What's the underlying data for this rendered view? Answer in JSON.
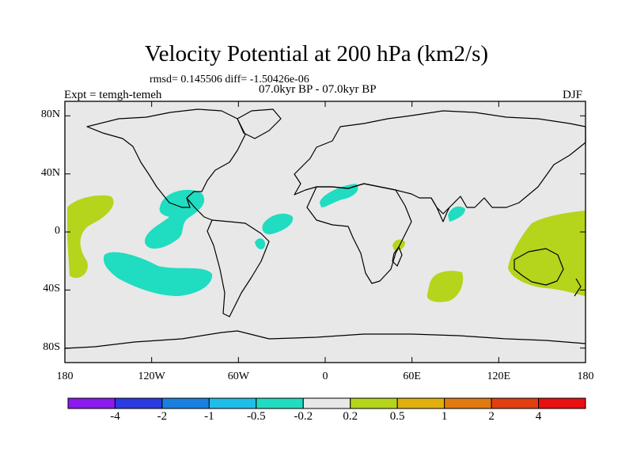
{
  "figure": {
    "title": "Velocity Potential at 200 hPa (km2/s)",
    "stats_line": "rmsd= 0.145506 diff= -1.50426e-06",
    "period_line": "07.0kyr BP - 07.0kyr BP",
    "experiment_line": "Expt = temgh-temeh",
    "season": "DJF"
  },
  "map": {
    "projection": "cylindrical-equidistant",
    "lon_range": [
      -180,
      180
    ],
    "lat_range": [
      -90,
      90
    ],
    "background_color": "#e8e8e8",
    "lat_ticks": [
      {
        "value": 80,
        "label": "80N"
      },
      {
        "value": 40,
        "label": "40N"
      },
      {
        "value": 0,
        "label": "0"
      },
      {
        "value": -40,
        "label": "40S"
      },
      {
        "value": -80,
        "label": "80S"
      }
    ],
    "lon_ticks": [
      {
        "value": -180,
        "label": "180"
      },
      {
        "value": -120,
        "label": "120W"
      },
      {
        "value": -60,
        "label": "60W"
      },
      {
        "value": 0,
        "label": "0"
      },
      {
        "value": 60,
        "label": "60E"
      },
      {
        "value": 120,
        "label": "120E"
      },
      {
        "value": 180,
        "label": "180"
      }
    ],
    "anomaly_regions": [
      {
        "name": "central-pacific-positive",
        "sign": "positive",
        "range": "0.2 to 0.5",
        "color": "#b5d41c"
      },
      {
        "name": "central-america-negative",
        "sign": "negative",
        "range": "-0.5 to -0.2",
        "color": "#20dcc0"
      },
      {
        "name": "south-pacific-negative",
        "sign": "negative",
        "range": "-0.5 to -0.2",
        "color": "#20dcc0"
      },
      {
        "name": "equatorial-atlantic-negative",
        "sign": "negative",
        "range": "-0.5 to -0.2",
        "color": "#20dcc0"
      },
      {
        "name": "north-africa-negative",
        "sign": "negative",
        "range": "-0.5 to -0.2",
        "color": "#20dcc0"
      },
      {
        "name": "bay-of-bengal-negative",
        "sign": "negative",
        "range": "-0.5 to -0.2",
        "color": "#20dcc0"
      },
      {
        "name": "madagascar-positive",
        "sign": "positive",
        "range": "0.2 to 0.5",
        "color": "#b5d41c"
      },
      {
        "name": "southern-indian-ocean-positive",
        "sign": "positive",
        "range": "0.2 to 0.5",
        "color": "#b5d41c"
      },
      {
        "name": "maritime-continent-australia-positive",
        "sign": "positive",
        "range": "0.2 to 0.5",
        "color": "#b5d41c"
      }
    ]
  },
  "colorbar": {
    "colors": [
      "#8a1aed",
      "#2a3ce0",
      "#1a80e0",
      "#20bde8",
      "#20dcc0",
      "#e8e8e8",
      "#b5d41c",
      "#e0b010",
      "#e07a10",
      "#e04010",
      "#e81010"
    ],
    "labels": [
      "-4",
      "-2",
      "-1",
      "-0.5",
      "-0.2",
      "0.2",
      "0.5",
      "1",
      "2",
      "4"
    ]
  }
}
